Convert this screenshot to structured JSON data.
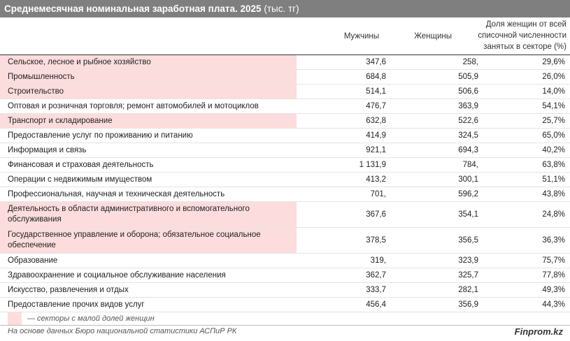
{
  "title": {
    "bold": "Среднемесячная номинальная заработная плата. 2025",
    "unit": "(тыс. тг)"
  },
  "columns": {
    "men": "Мужчины",
    "women": "Женщины",
    "share_line1": "Доля женщин от всей",
    "share_line2": "списочной численности",
    "share_line3": "занятых в секторе (%)"
  },
  "colors": {
    "header_bg": "#7f7f7f",
    "highlight": "#fcdcdc"
  },
  "rows": [
    {
      "label": "Сельское, лесное и рыбное хозяйство",
      "men": "347,6",
      "women": "258,",
      "share": "29,6%",
      "highlight": true,
      "tall": false
    },
    {
      "label": "Промышленность",
      "men": "684,8",
      "women": "505,9",
      "share": "26,0%",
      "highlight": true,
      "tall": false
    },
    {
      "label": "Строительство",
      "men": "514,1",
      "women": "506,6",
      "share": "14,0%",
      "highlight": true,
      "tall": false
    },
    {
      "label": "Оптовая и розничная торговля; ремонт автомобилей и мотоциклов",
      "men": "476,7",
      "women": "363,9",
      "share": "54,1%",
      "highlight": false,
      "tall": false
    },
    {
      "label": "Транспорт и складирование",
      "men": "632,8",
      "women": "522,6",
      "share": "25,7%",
      "highlight": true,
      "tall": false
    },
    {
      "label": "Предоставление услуг по проживанию и питанию",
      "men": "414,9",
      "women": "324,5",
      "share": "65,0%",
      "highlight": false,
      "tall": false
    },
    {
      "label": "Информация и связь",
      "men": "921,1",
      "women": "694,3",
      "share": "40,2%",
      "highlight": false,
      "tall": false
    },
    {
      "label": "Финансовая и страховая деятельность",
      "men": "1 131,9",
      "women": "784,",
      "share": "63,8%",
      "highlight": false,
      "tall": false
    },
    {
      "label": "Операции с недвижимым имуществом",
      "men": "413,2",
      "women": "300,1",
      "share": "51,1%",
      "highlight": false,
      "tall": false
    },
    {
      "label": "Профессиональная, научная и техническая деятельность",
      "men": "701,",
      "women": "596,2",
      "share": "43,8%",
      "highlight": false,
      "tall": false
    },
    {
      "label": "Деятельность в области административного и вспомогательного обслуживания",
      "men": "367,6",
      "women": "354,1",
      "share": "24,8%",
      "highlight": true,
      "tall": true
    },
    {
      "label": "Государственное управление и оборона; обязательное социальное обеспечение",
      "men": "378,5",
      "women": "356,5",
      "share": "36,3%",
      "highlight": true,
      "tall": true
    },
    {
      "label": "Образование",
      "men": "319,",
      "women": "323,9",
      "share": "75,7%",
      "highlight": false,
      "tall": false
    },
    {
      "label": "Здравоохранение и социальное обслуживание населения",
      "men": "362,7",
      "women": "325,7",
      "share": "77,8%",
      "highlight": false,
      "tall": false
    },
    {
      "label": "Искусство, развлечения и отдых",
      "men": "333,7",
      "women": "282,1",
      "share": "49,3%",
      "highlight": false,
      "tall": false
    },
    {
      "label": "Предоставление прочих видов услуг",
      "men": "456,4",
      "women": "356,9",
      "share": "44,3%",
      "highlight": false,
      "tall": false
    }
  ],
  "legend": {
    "text": "— секторы с малой долей женщин"
  },
  "footer": {
    "source": "На основе данных Бюро национальной статистики АСПиР РК",
    "brand": "Finprom.kz"
  }
}
